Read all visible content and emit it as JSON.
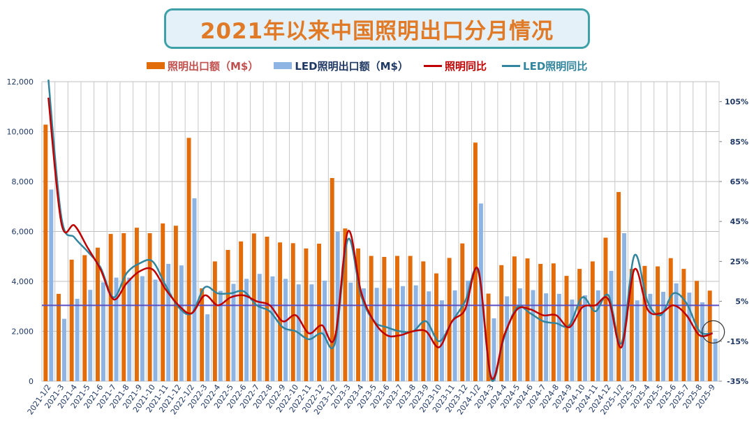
{
  "title": "2021年以来中国照明出口分月情况",
  "legend": {
    "bar1": "照明出口额（M$）",
    "bar2": "LED照明出口额（M$）",
    "line1": "照明同比",
    "line2": "LED照明同比"
  },
  "colors": {
    "bar1": "#e36c0a",
    "bar2": "#8eb4e3",
    "line1": "#c00000",
    "line2": "#31859c",
    "refline": "#5b4fc4",
    "title_text": "#e07a26",
    "title_border": "#3fa1a8",
    "axis_text": "#1f3864"
  },
  "chart_data": {
    "type": "bar",
    "title": "2021年以来中国照明出口分月情况",
    "categories": [
      "2021-1/2",
      "2021-3",
      "2021-4",
      "2021-5",
      "2021-6",
      "2021-7",
      "2021-8",
      "2021-9",
      "2021-10",
      "2021-11",
      "2021-12",
      "2022-1/2",
      "2022-3",
      "2022-4",
      "2022-5",
      "2022-6",
      "2022-7",
      "2022-8",
      "2022-9",
      "2022-10",
      "2022-11",
      "2022-12",
      "2023-1/2",
      "2023-3",
      "2023-4",
      "2023-5",
      "2023-6",
      "2023-7",
      "2023-8",
      "2023-9",
      "2023-10",
      "2023-11",
      "2023-12",
      "2024-1/2",
      "2024-3",
      "2024-4",
      "2024-5",
      "2024-6",
      "2024-7",
      "2024-8",
      "2024-9",
      "2024-10",
      "2024-11",
      "2024-12",
      "2025-1/2",
      "2025-3",
      "2025-4",
      "2025-5",
      "2025-6",
      "2025-7",
      "2025-8",
      "2025-9"
    ],
    "series": [
      {
        "name": "照明出口额（M$）",
        "kind": "bar",
        "axis": "left",
        "values": [
          10280,
          3500,
          4870,
          5050,
          5350,
          5900,
          5930,
          6150,
          5930,
          6320,
          6230,
          9750,
          3720,
          4800,
          5260,
          5600,
          5920,
          5790,
          5560,
          5530,
          5320,
          5510,
          8140,
          6120,
          5320,
          5020,
          4980,
          5020,
          5020,
          4800,
          4320,
          4940,
          5520,
          9560,
          3510,
          4650,
          5000,
          4920,
          4700,
          4720,
          4220,
          4500,
          4800,
          5750,
          7580,
          4500,
          4620,
          4600,
          4930,
          4500,
          4020,
          3630
        ]
      },
      {
        "name": "LED照明出口额（M$）",
        "kind": "bar",
        "axis": "left",
        "values": [
          7680,
          2500,
          3300,
          3660,
          3960,
          4150,
          4150,
          4210,
          4070,
          4700,
          4640,
          7330,
          2680,
          3620,
          3900,
          4100,
          4300,
          4200,
          4100,
          3880,
          3880,
          4030,
          5990,
          3950,
          3720,
          3740,
          3730,
          3810,
          3840,
          3600,
          3240,
          3640,
          4030,
          7120,
          2520,
          3400,
          3720,
          3650,
          3520,
          3500,
          3270,
          3440,
          3640,
          4420,
          5930,
          3240,
          3500,
          3580,
          3920,
          3550,
          3160,
          1700
        ]
      },
      {
        "name": "照明同比",
        "kind": "line",
        "axis": "right",
        "values": [
          107,
          44,
          43,
          32,
          21,
          6,
          14,
          20,
          21,
          11,
          3,
          -1,
          8,
          3,
          7,
          8,
          5,
          3,
          -5,
          -2,
          -11,
          -7,
          -13,
          40,
          10,
          -5,
          -12,
          -12,
          -10,
          -10,
          -18,
          -5,
          1,
          21,
          -33,
          -12,
          1,
          1,
          -2,
          -2,
          -8,
          2,
          3,
          6,
          -18,
          21,
          1,
          -1,
          3,
          -2,
          -12,
          -11
        ]
      },
      {
        "name": "LED照明同比",
        "kind": "line",
        "axis": "right",
        "values": [
          116,
          47,
          37,
          30,
          22,
          7,
          19,
          24,
          25,
          13,
          2,
          -1,
          12,
          9,
          9,
          10,
          3,
          0,
          -8,
          -10,
          -14,
          -11,
          -16,
          36,
          8,
          -5,
          -8,
          -10,
          -10,
          -5,
          -15,
          -5,
          5,
          20,
          -34,
          -13,
          2,
          -1,
          -5,
          -6,
          -7,
          7,
          0,
          8,
          -16,
          28,
          5,
          -2,
          9,
          4,
          -10,
          -11
        ]
      }
    ],
    "y_left": {
      "min": 0,
      "max": 12000,
      "ticks": [
        "0",
        "2,000",
        "4,000",
        "6,000",
        "8,000",
        "10,000",
        "12,000"
      ],
      "tick_values": [
        0,
        2000,
        4000,
        6000,
        8000,
        10000,
        12000
      ]
    },
    "y_right": {
      "min": -35,
      "max": 115,
      "ticks": [
        "-35%",
        "-15%",
        "5%",
        "25%",
        "45%",
        "65%",
        "85%",
        "105%"
      ],
      "tick_values": [
        -35,
        -15,
        5,
        25,
        45,
        65,
        85,
        105
      ]
    },
    "reference_line": {
      "axis": "right",
      "value": 3
    },
    "grid": true,
    "legend_position": "top"
  }
}
